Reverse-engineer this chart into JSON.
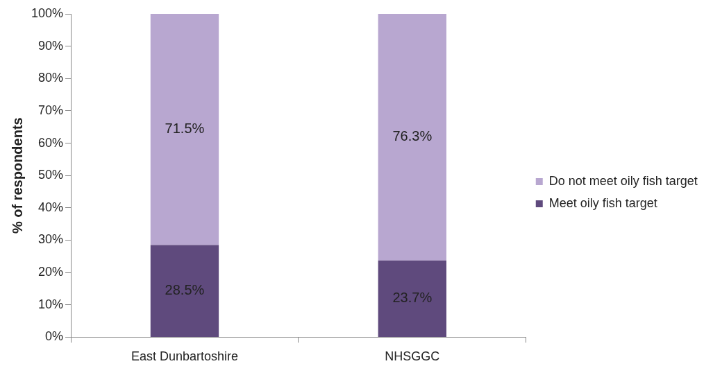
{
  "chart_data": {
    "type": "bar",
    "stacked": true,
    "ylabel": "% of respondents",
    "categories": [
      "East Dunbartoshire",
      "NHSGGC"
    ],
    "series": [
      {
        "name": "Meet oily fish target",
        "color": "#5f4a7d",
        "values": [
          28.5,
          23.7
        ]
      },
      {
        "name": "Do not meet oily fish target",
        "color": "#b8a7d0",
        "values": [
          71.5,
          76.3
        ]
      }
    ],
    "ylim": [
      0,
      100
    ],
    "yticks": [
      {
        "value": 0,
        "label": "0%"
      },
      {
        "value": 10,
        "label": "10%"
      },
      {
        "value": 20,
        "label": "20%"
      },
      {
        "value": 30,
        "label": "30%"
      },
      {
        "value": 40,
        "label": "40%"
      },
      {
        "value": 50,
        "label": "50%"
      },
      {
        "value": 60,
        "label": "60%"
      },
      {
        "value": 70,
        "label": "70%"
      },
      {
        "value": 80,
        "label": "80%"
      },
      {
        "value": 90,
        "label": "90%"
      },
      {
        "value": 100,
        "label": "100%"
      }
    ],
    "value_labels": [
      [
        "28.5%",
        "23.7%"
      ],
      [
        "71.5%",
        "76.3%"
      ]
    ],
    "grid": false,
    "legend": "right"
  }
}
